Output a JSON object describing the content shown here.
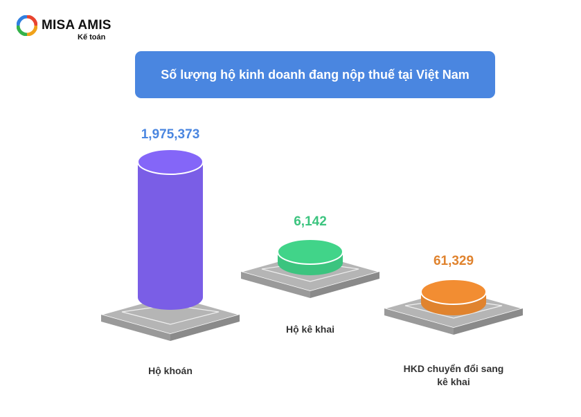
{
  "brand": {
    "name": "MISA AMIS",
    "subtitle": "Kế toán"
  },
  "title": "Số lượng hộ kinh doanh đang nộp thuế tại Việt Nam",
  "colors": {
    "banner": "#4a86e0",
    "platform": "#b5b5b5"
  },
  "chart_data": {
    "type": "bar",
    "title": "Số lượng hộ kinh doanh đang nộp thuế tại Việt Nam",
    "categories": [
      "Hộ khoán",
      "Hộ kê khai",
      "HKD chuyển đổi sang kê khai"
    ],
    "category_lines": [
      [
        "Hộ khoán"
      ],
      [
        "Hộ kê khai"
      ],
      [
        "HKD chuyển đổi sang",
        "kê khai"
      ]
    ],
    "values": [
      1975373,
      6142,
      61329
    ],
    "value_labels": [
      "1,975,373",
      "6,142",
      "61,329"
    ],
    "colors": [
      "#7a5ee6",
      "#3cc47f",
      "#e0832e"
    ],
    "label_colors": [
      "#4a86e0",
      "#3cc47f",
      "#e0832e"
    ],
    "style": "3d-cylinder",
    "grid": false,
    "legend": "none"
  }
}
